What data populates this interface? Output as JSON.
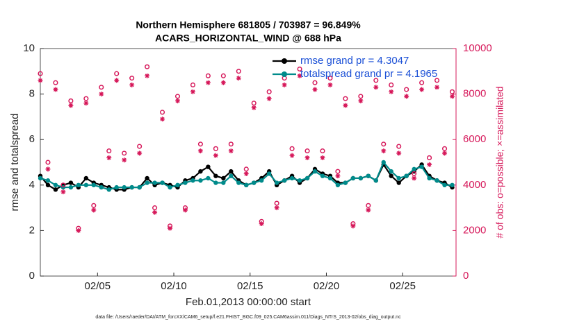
{
  "chart_data": {
    "type": "line",
    "title": "Northern Hemisphere 681805 / 703987 = 96.849%",
    "subtitle": "ACARS_HORIZONTAL_WIND @ 688 hPa",
    "xlabel": "Feb.01,2013 00:00:00 start",
    "ylabel": "rmse and totalspread",
    "y2label": "# of obs: o=possible; ×=assimilated",
    "footnote": "data file: /Users/raeder/DAI/ATM_forcXX/CAM6_setup/f.e21.FHIST_BGC.f09_025.CAM6assim.011/Diags_NTrS_2013-02/obs_diag_output.nc",
    "legend": "upper right",
    "xlim": [
      1.25,
      28.5
    ],
    "xticks": [
      {
        "value": 5,
        "label": "02/05"
      },
      {
        "value": 10,
        "label": "02/10"
      },
      {
        "value": 15,
        "label": "02/15"
      },
      {
        "value": 20,
        "label": "02/20"
      },
      {
        "value": 25,
        "label": "02/25"
      }
    ],
    "ylim": [
      0,
      10
    ],
    "yticks": [
      0,
      2,
      4,
      6,
      8,
      10
    ],
    "y2lim": [
      0,
      10000
    ],
    "y2ticks": [
      0,
      2000,
      4000,
      6000,
      8000,
      10000
    ],
    "y2color": "#d6185a",
    "x": [
      1.25,
      1.75,
      2.25,
      2.75,
      3.25,
      3.75,
      4.25,
      4.75,
      5.25,
      5.75,
      6.25,
      6.75,
      7.25,
      7.75,
      8.25,
      8.75,
      9.25,
      9.75,
      10.25,
      10.75,
      11.25,
      11.75,
      12.25,
      12.75,
      13.25,
      13.75,
      14.25,
      14.75,
      15.25,
      15.75,
      16.25,
      16.75,
      17.25,
      17.75,
      18.25,
      18.75,
      19.25,
      19.75,
      20.25,
      20.75,
      21.25,
      21.75,
      22.25,
      22.75,
      23.25,
      23.75,
      24.25,
      24.75,
      25.25,
      25.75,
      26.25,
      26.75,
      27.25,
      27.75,
      28.25
    ],
    "series": [
      {
        "name": "rmse grand pr = 4.3047",
        "color": "#000000",
        "marker": "dot",
        "line": true,
        "values": [
          4.4,
          4.0,
          3.8,
          4.0,
          4.1,
          3.9,
          4.3,
          4.1,
          4.0,
          3.9,
          3.8,
          3.8,
          3.9,
          3.9,
          4.3,
          4.0,
          4.1,
          4.0,
          3.9,
          4.2,
          4.3,
          4.6,
          4.8,
          4.4,
          4.3,
          4.6,
          4.2,
          4.0,
          4.1,
          4.3,
          4.6,
          4.0,
          4.2,
          4.4,
          4.1,
          4.3,
          4.7,
          4.5,
          4.4,
          4.1,
          4.1,
          4.3,
          4.3,
          4.4,
          4.2,
          4.9,
          4.4,
          4.1,
          4.4,
          4.6,
          4.9,
          4.4,
          4.2,
          4.1,
          3.9
        ]
      },
      {
        "name": "totalspread grand pr = 4.1965",
        "color": "#008b8b",
        "marker": "dot",
        "line": true,
        "values": [
          4.3,
          4.2,
          4.0,
          3.9,
          3.9,
          4.0,
          4.0,
          4.0,
          3.9,
          3.8,
          3.9,
          3.9,
          3.9,
          3.9,
          4.1,
          4.1,
          4.1,
          3.9,
          4.0,
          4.1,
          4.2,
          4.2,
          4.3,
          4.1,
          4.1,
          4.4,
          4.1,
          4.0,
          4.1,
          4.2,
          4.5,
          4.1,
          4.2,
          4.3,
          4.2,
          4.3,
          4.6,
          4.4,
          4.3,
          4.0,
          4.1,
          4.3,
          4.3,
          4.4,
          4.2,
          5.0,
          4.6,
          4.3,
          4.4,
          4.7,
          4.8,
          4.3,
          4.2,
          4.0,
          4.0
        ]
      },
      {
        "color": "#d6185a",
        "marker": "circle",
        "line": false,
        "axis": "y2",
        "values": [
          8900,
          5000,
          8500,
          4000,
          7700,
          2100,
          7800,
          3100,
          8300,
          5500,
          8900,
          5400,
          8700,
          5700,
          9200,
          3000,
          7200,
          2200,
          7900,
          3000,
          8400,
          5800,
          8800,
          5600,
          8800,
          5800,
          9000,
          4700,
          7600,
          2400,
          8100,
          3200,
          8700,
          5600,
          9100,
          5500,
          8500,
          5500,
          8700,
          4600,
          7800,
          2300,
          7900,
          3100,
          8600,
          5800,
          8400,
          5700,
          8200,
          4500,
          8500,
          5200,
          8600,
          5600,
          8100
        ]
      },
      {
        "color": "#d6185a",
        "marker": "asterisk",
        "line": false,
        "axis": "y2",
        "values": [
          8600,
          4700,
          8200,
          3700,
          7500,
          2000,
          7600,
          2900,
          8000,
          5200,
          8600,
          5100,
          8400,
          5400,
          8800,
          2800,
          6900,
          2100,
          7700,
          2900,
          8100,
          5500,
          8500,
          5300,
          8500,
          5500,
          8700,
          4500,
          7400,
          2300,
          7800,
          3000,
          8400,
          5300,
          8800,
          5200,
          8200,
          5200,
          8400,
          4400,
          7500,
          2200,
          7700,
          2900,
          8300,
          5500,
          8100,
          5400,
          7900,
          4300,
          8200,
          4900,
          8300,
          5400,
          7900
        ]
      }
    ]
  }
}
